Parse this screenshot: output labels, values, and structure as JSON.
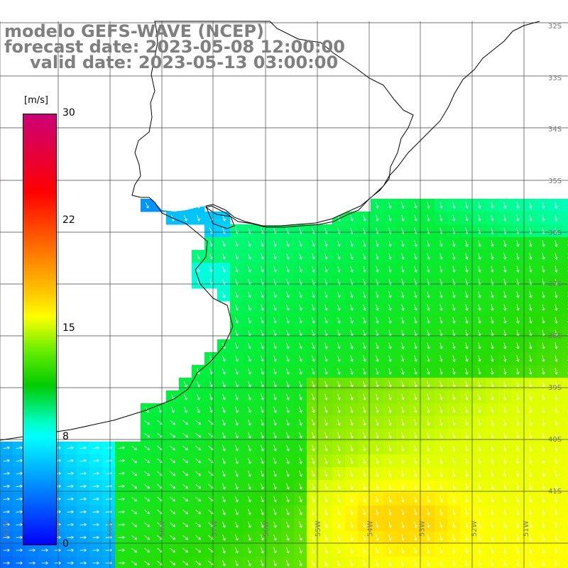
{
  "title": {
    "line1": "modelo GEFS-WAVE (NCEP)",
    "line2": "forecast date: 2023-05-08 12:00:00",
    "line3": "valid date: 2023-05-13 03:00:00"
  },
  "colorbar": {
    "unit": "[m/s]",
    "ticks": [
      "30",
      "22",
      "15",
      "8",
      "0"
    ],
    "colors": [
      "#cc0077",
      "#ff0000",
      "#ff6600",
      "#ffff00",
      "#00cc00",
      "#00ffff",
      "#0099ff",
      "#0000ff"
    ]
  },
  "axes": {
    "lon_labels": [
      "61W",
      "60W",
      "59W",
      "58W",
      "57W",
      "56W",
      "55W",
      "54W",
      "53W",
      "52W",
      "51W"
    ],
    "lat_labels": [
      "32S",
      "33S",
      "34S",
      "35S",
      "36S",
      "37S",
      "38S",
      "39S",
      "40S",
      "41S"
    ]
  },
  "colors": {
    "land": "#ffffff",
    "grid": "#444444",
    "coast": "#000000",
    "arrow": "#ffffff",
    "label": "#777777"
  }
}
